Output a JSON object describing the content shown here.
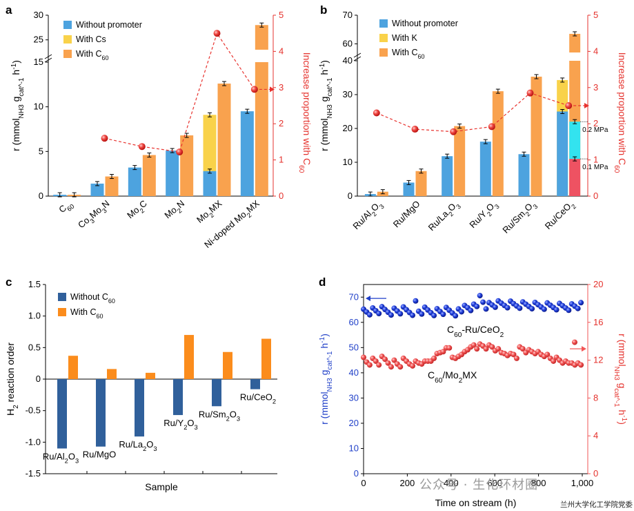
{
  "colors": {
    "blue_bar": "#4da3df",
    "yellow_bar": "#f9d24a",
    "orange_bar": "#f9a24e",
    "c_blue": "#30609b",
    "c_orange": "#fb8c1c",
    "red_point": "#e8322e",
    "red_axis": "#e5322d",
    "cyan_seg": "#33e3ef",
    "pink_seg": "#ee5262",
    "d_blue": "#1f3fc8",
    "d_red": "#f25656"
  },
  "watermark": {
    "text": "公众号 · 生化环材圈",
    "credit": "兰州大学化工学院党委"
  },
  "chart_data": [
    {
      "panel": "a",
      "type": "bar",
      "ylabel_left": "r (mmol_NH3 g_cat^-1 h^-1)",
      "ylabel_right": "Increase proportion with C60",
      "legend": [
        "Without promoter",
        "With Cs",
        "With C60"
      ],
      "categories": [
        "C60",
        "Co3Mo3N",
        "Mo2C",
        "Mo2N",
        "Mo2MX",
        "Ni-doped Mo2MX"
      ],
      "left_ticks": [
        0,
        5,
        10,
        15,
        25,
        30
      ],
      "right_ticks": [
        0,
        1,
        2,
        3,
        4,
        5
      ],
      "axis_break": [
        16,
        23
      ],
      "without_promoter": [
        0.15,
        1.4,
        3.2,
        5.1,
        2.8,
        9.5
      ],
      "with_cs": [
        null,
        null,
        null,
        null,
        9.1,
        null
      ],
      "with_c60": [
        0.15,
        2.2,
        4.6,
        6.8,
        12.6,
        28.0
      ],
      "increase_proportion": [
        null,
        1.6,
        1.37,
        1.22,
        4.5,
        2.95
      ]
    },
    {
      "panel": "b",
      "type": "bar",
      "ylabel_left": "r (mmol_NH3 g_cat^-1 h^-1)",
      "ylabel_right": "Increase proportion with C60",
      "legend": [
        "Without promoter",
        "With K",
        "With C60"
      ],
      "categories": [
        "Ru/Al2O3",
        "Ru/MgO",
        "Ru/La2O3",
        "Ru/Y2O3",
        "Ru/Sm2O3",
        "Ru/CeO2"
      ],
      "left_ticks": [
        0,
        10,
        20,
        30,
        40,
        60,
        70
      ],
      "right_ticks": [
        0,
        1,
        2,
        3,
        4,
        5
      ],
      "axis_break": [
        42,
        57
      ],
      "without_promoter": [
        0.6,
        4.0,
        11.8,
        16.1,
        12.4,
        25.0
      ],
      "with_k": [
        null,
        null,
        null,
        null,
        null,
        34.3
      ],
      "with_c60": [
        1.3,
        7.4,
        20.7,
        31.0,
        35.3,
        63.5
      ],
      "increase_proportion": [
        2.3,
        1.85,
        1.78,
        1.92,
        2.85,
        2.5
      ],
      "annotations": [
        {
          "text": "0.2 MPa",
          "value": 22.0
        },
        {
          "text": "0.1 MPa",
          "value": 11.0
        }
      ]
    },
    {
      "panel": "c",
      "type": "bar",
      "ylabel": "H2 reaction order",
      "xlabel": "Sample",
      "legend": [
        "Without C60",
        "With C60"
      ],
      "categories": [
        "Ru/Al2O3",
        "Ru/MgO",
        "Ru/La2O3",
        "Ru/Y2O3",
        "Ru/Sm2O3",
        "Ru/CeO2"
      ],
      "yticks": [
        "-1.5",
        "-1.0",
        "-0.5",
        "0",
        "0.5",
        "1.0",
        "1.5"
      ],
      "ylim": [
        -1.5,
        1.5
      ],
      "without_c60": [
        -1.1,
        -1.07,
        -0.91,
        -0.57,
        -0.43,
        -0.16
      ],
      "with_c60": [
        0.37,
        0.16,
        0.1,
        0.7,
        0.43,
        0.64
      ]
    },
    {
      "panel": "d",
      "type": "scatter",
      "xlabel": "Time on stream (h)",
      "ylabel_left": "r (mmol_NH3 g_cat^-1 h^-1)",
      "ylabel_right": "r (mmol_NH3 g_cat^-1 h^-1)",
      "xticks": [
        "0",
        "200",
        "400",
        "600",
        "800",
        "1,000"
      ],
      "xlim": [
        0,
        1000
      ],
      "left_ticks": [
        0,
        10,
        20,
        30,
        40,
        50,
        60,
        70
      ],
      "left_ylim": [
        0,
        75
      ],
      "right_ticks": [
        0,
        4,
        8,
        12,
        16,
        20
      ],
      "right_ylim": [
        0,
        20
      ],
      "series": [
        {
          "name": "C60-Ru/CeO2",
          "axis": "left",
          "x": [
            0,
            14,
            28,
            42,
            56,
            70,
            84,
            98,
            112,
            126,
            140,
            154,
            168,
            182,
            196,
            210,
            224,
            238,
            252,
            266,
            280,
            294,
            308,
            322,
            336,
            350,
            364,
            378,
            392,
            406,
            420,
            434,
            448,
            462,
            476,
            490,
            504,
            518,
            532,
            546,
            560,
            574,
            588,
            602,
            616,
            630,
            644,
            658,
            672,
            686,
            700,
            714,
            728,
            742,
            756,
            770,
            784,
            798,
            812,
            826,
            840,
            854,
            868,
            882,
            896,
            910,
            924,
            938,
            952,
            966,
            980,
            994
          ],
          "y": [
            65.2,
            64.1,
            63.0,
            65.7,
            64.6,
            63.5,
            66.2,
            65.1,
            64.0,
            62.9,
            65.6,
            64.5,
            63.4,
            66.1,
            65.0,
            63.9,
            62.8,
            68.5,
            64.4,
            63.3,
            66.0,
            64.9,
            63.8,
            62.7,
            65.4,
            64.3,
            63.2,
            65.9,
            64.8,
            63.7,
            62.6,
            65.3,
            64.2,
            66.7,
            65.8,
            64.7,
            67.2,
            66.3,
            70.6,
            68.0,
            65.3,
            67.8,
            66.9,
            66.0,
            68.5,
            67.6,
            66.7,
            65.8,
            68.4,
            67.4,
            66.5,
            65.6,
            68.1,
            67.2,
            66.3,
            65.4,
            67.9,
            67.0,
            66.1,
            65.2,
            67.7,
            66.8,
            65.9,
            65.0,
            67.5,
            66.6,
            65.7,
            64.8,
            67.3,
            66.4,
            65.5,
            67.8
          ]
        },
        {
          "name": "C60/Mo2MX",
          "axis": "right",
          "x": [
            0,
            14,
            28,
            42,
            56,
            70,
            84,
            98,
            112,
            126,
            140,
            154,
            168,
            182,
            196,
            210,
            224,
            238,
            252,
            266,
            280,
            294,
            308,
            322,
            336,
            350,
            364,
            378,
            392,
            406,
            420,
            434,
            448,
            462,
            476,
            490,
            504,
            518,
            532,
            546,
            560,
            574,
            588,
            602,
            616,
            630,
            644,
            658,
            672,
            686,
            700,
            714,
            728,
            742,
            756,
            770,
            784,
            798,
            812,
            826,
            840,
            854,
            868,
            882,
            896,
            910,
            924,
            938,
            952,
            966,
            980,
            994
          ],
          "y": [
            12.3,
            11.8,
            11.5,
            12.2,
            11.9,
            11.5,
            12.4,
            12.1,
            11.7,
            11.3,
            12.0,
            11.6,
            11.3,
            12.2,
            11.9,
            11.6,
            11.4,
            11.9,
            11.7,
            11.6,
            11.9,
            11.9,
            11.9,
            12.2,
            12.7,
            12.8,
            12.9,
            13.3,
            13.3,
            12.3,
            12.2,
            12.4,
            12.6,
            12.9,
            13.1,
            13.4,
            13.6,
            13.2,
            13.7,
            13.5,
            13.2,
            13.6,
            13.4,
            13.0,
            13.2,
            12.8,
            12.7,
            12.5,
            12.7,
            12.6,
            12.2,
            13.4,
            13.2,
            12.8,
            13.1,
            12.9,
            12.7,
            12.9,
            12.6,
            12.4,
            12.6,
            12.2,
            11.9,
            12.3,
            12.0,
            11.7,
            11.9,
            11.7,
            11.7,
            11.5,
            11.7,
            11.5
          ]
        }
      ],
      "series_labels": [
        "C60-Ru/CeO2",
        "C60/Mo2MX"
      ]
    }
  ],
  "labels": {
    "a_panel": "a",
    "b_panel": "b",
    "c_panel": "c",
    "d_panel": "d"
  }
}
